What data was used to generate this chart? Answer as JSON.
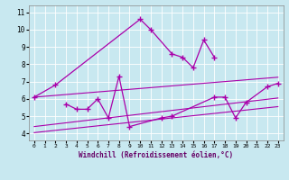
{
  "bg_color": "#c8e8f0",
  "line_color": "#aa00aa",
  "grid_color": "#ffffff",
  "x": [
    0,
    1,
    2,
    3,
    4,
    5,
    6,
    7,
    8,
    9,
    10,
    11,
    12,
    13,
    14,
    15,
    16,
    17,
    18,
    19,
    20,
    21,
    22,
    23
  ],
  "series1": [
    6.1,
    null,
    6.8,
    null,
    null,
    null,
    null,
    null,
    null,
    null,
    10.6,
    10.0,
    null,
    8.6,
    8.4,
    7.8,
    9.4,
    8.4,
    null,
    null,
    null,
    null,
    null,
    null
  ],
  "series2": [
    null,
    null,
    null,
    5.7,
    5.4,
    5.4,
    6.0,
    4.9,
    7.3,
    4.4,
    null,
    null,
    4.9,
    5.0,
    null,
    null,
    null,
    6.1,
    6.1,
    4.9,
    5.8,
    null,
    6.7,
    6.9
  ],
  "trend1_x": [
    0,
    23
  ],
  "trend1_y": [
    4.05,
    5.55
  ],
  "trend2_x": [
    0,
    23
  ],
  "trend2_y": [
    4.4,
    6.05
  ],
  "trend3_x": [
    0,
    23
  ],
  "trend3_y": [
    6.1,
    7.25
  ],
  "xlabel": "Windchill (Refroidissement éolien,°C)",
  "ylim": [
    3.6,
    11.4
  ],
  "yticks": [
    4,
    5,
    6,
    7,
    8,
    9,
    10,
    11
  ],
  "xlim": [
    -0.5,
    23.5
  ],
  "xticks": [
    0,
    1,
    2,
    3,
    4,
    5,
    6,
    7,
    8,
    9,
    10,
    11,
    12,
    13,
    14,
    15,
    16,
    17,
    18,
    19,
    20,
    21,
    22,
    23
  ]
}
